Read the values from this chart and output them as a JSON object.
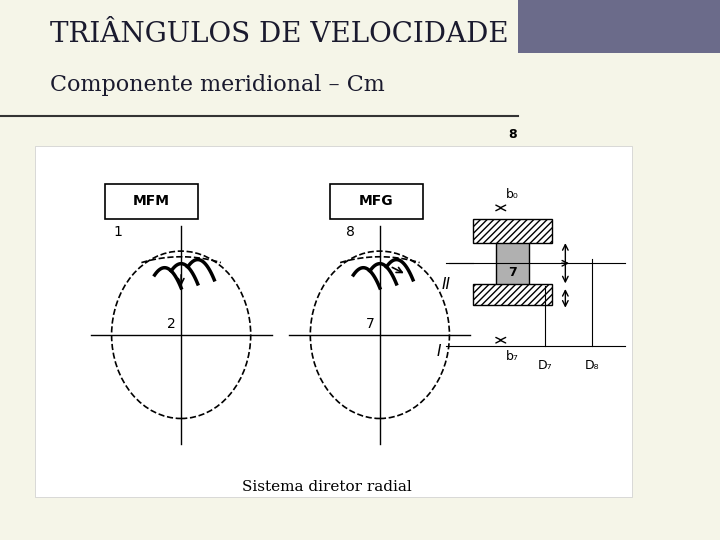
{
  "title_line1": "TRIÂNGULOS DE VELOCIDADE",
  "title_line2": "Componente meridional – Cm",
  "subtitle": "Sistema diretor radial",
  "bg_color": "#f5f5e8",
  "panel_bg": "#ffffff",
  "title_color": "#1a1a2e",
  "line_color": "#000000",
  "hatch_color": "#555555",
  "gray_fill": "#b0b0b0",
  "header_bar_color": "#6b6b8a"
}
